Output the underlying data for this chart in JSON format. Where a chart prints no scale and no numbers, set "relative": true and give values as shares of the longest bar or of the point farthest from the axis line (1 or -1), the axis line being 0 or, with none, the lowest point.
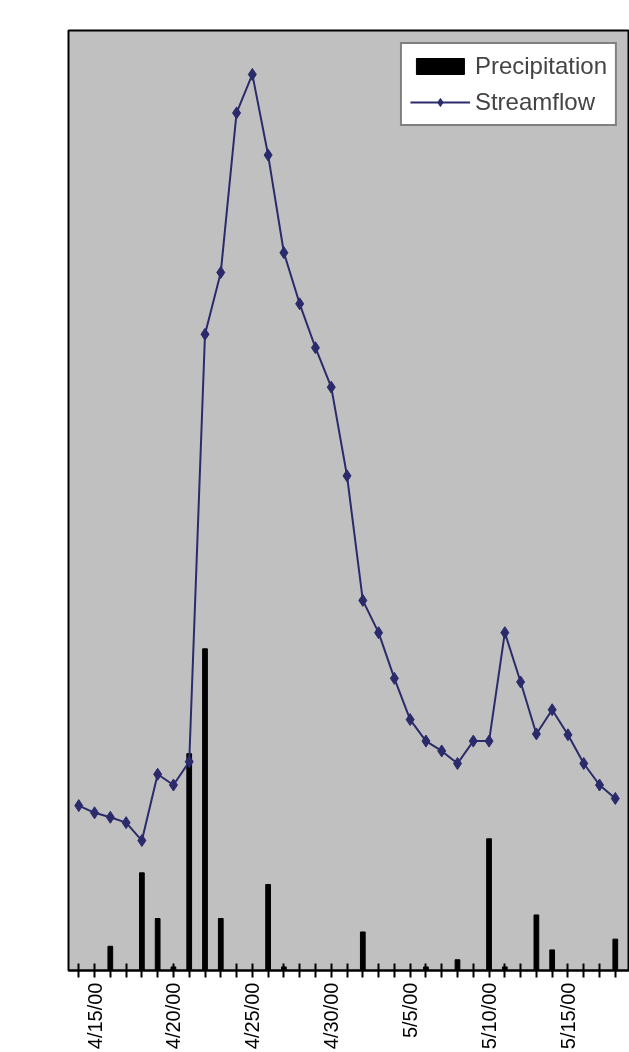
{
  "chart_data": {
    "type": "bar",
    "relative": true,
    "categories": [
      null,
      "4/15/00",
      null,
      null,
      null,
      null,
      "4/20/00",
      null,
      null,
      null,
      null,
      "4/25/00",
      null,
      null,
      null,
      null,
      "4/30/00",
      null,
      null,
      null,
      null,
      "5/5/00",
      null,
      null,
      null,
      null,
      "5/10/00",
      null,
      null,
      null,
      null,
      "5/15/00",
      null,
      null,
      null
    ],
    "series": [
      {
        "name": "Precipitation",
        "color": "#000000",
        "values": [
          0,
          0,
          0.027,
          0,
          0.109,
          0.058,
          0.004,
          0.242,
          0.359,
          0.058,
          0,
          0,
          0.096,
          0.004,
          0,
          0,
          0,
          0,
          0.043,
          0,
          0,
          0,
          0.004,
          0,
          0.012,
          0,
          0.147,
          0.004,
          0,
          0.062,
          0.023,
          0,
          0,
          0,
          0.035
        ]
      },
      {
        "name": "Streamflow",
        "type": "line",
        "color": "#2b2a6b",
        "values": [
          0.184,
          0.176,
          0.171,
          0.165,
          0.145,
          0.219,
          0.207,
          0.233,
          0.71,
          0.779,
          0.957,
          1.0,
          0.91,
          0.801,
          0.744,
          0.695,
          0.651,
          0.552,
          0.413,
          0.377,
          0.326,
          0.28,
          0.256,
          0.245,
          0.231,
          0.256,
          0.256,
          0.377,
          0.322,
          0.264,
          0.291,
          0.263,
          0.231,
          0.207,
          0.192
        ]
      }
    ],
    "legend": "top right",
    "marker": "diamond"
  }
}
